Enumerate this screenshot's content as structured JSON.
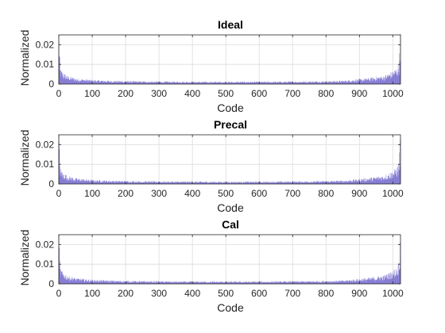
{
  "chart_data": [
    {
      "type": "bar",
      "title": "Ideal",
      "xlabel": "Code",
      "ylabel": "Normalized",
      "xlim": [
        0,
        1023
      ],
      "ylim": [
        0,
        0.025
      ],
      "grid": true,
      "x_ticks": [
        0,
        100,
        200,
        300,
        400,
        500,
        600,
        700,
        800,
        900,
        1000
      ],
      "y_ticks": [
        0,
        0.01,
        0.02
      ],
      "y_tick_labels": [
        "0",
        "0.01",
        "0.02"
      ],
      "x": [
        0,
        4,
        10,
        25,
        50,
        100,
        150,
        200,
        250,
        300,
        350,
        400,
        450,
        500,
        550,
        600,
        650,
        700,
        750,
        800,
        850,
        873,
        923,
        973,
        998,
        1013,
        1019,
        1023
      ],
      "y": [
        0.0195,
        0.006,
        0.0045,
        0.003,
        0.0021,
        0.0015,
        0.00125,
        0.0011,
        0.001,
        0.00095,
        0.0009,
        0.00088,
        0.00086,
        0.00085,
        0.00086,
        0.00088,
        0.0009,
        0.00095,
        0.001,
        0.0011,
        0.00125,
        0.0015,
        0.0021,
        0.003,
        0.0045,
        0.006,
        0.0085,
        0.0195
      ],
      "series_color": "#5b4fc4"
    },
    {
      "type": "bar",
      "title": "Precal",
      "xlabel": "Code",
      "ylabel": "Normalized",
      "xlim": [
        0,
        1023
      ],
      "ylim": [
        0,
        0.025
      ],
      "grid": true,
      "x_ticks": [
        0,
        100,
        200,
        300,
        400,
        500,
        600,
        700,
        800,
        900,
        1000
      ],
      "y_ticks": [
        0,
        0.01,
        0.02
      ],
      "y_tick_labels": [
        "0",
        "0.01",
        "0.02"
      ],
      "x": [
        0,
        4,
        10,
        25,
        50,
        100,
        150,
        200,
        250,
        300,
        350,
        400,
        450,
        500,
        550,
        600,
        650,
        700,
        750,
        800,
        850,
        873,
        923,
        973,
        998,
        1013,
        1019,
        1023
      ],
      "y": [
        0.0198,
        0.006,
        0.0045,
        0.003,
        0.0021,
        0.0015,
        0.00125,
        0.0011,
        0.001,
        0.00095,
        0.0009,
        0.00088,
        0.00086,
        0.00085,
        0.00086,
        0.00088,
        0.0009,
        0.00095,
        0.001,
        0.0011,
        0.00125,
        0.0015,
        0.0021,
        0.003,
        0.0045,
        0.006,
        0.0085,
        0.0198
      ],
      "series_color": "#5b4fc4"
    },
    {
      "type": "bar",
      "title": "Cal",
      "xlabel": "Code",
      "ylabel": "Normalized",
      "xlim": [
        0,
        1023
      ],
      "ylim": [
        0,
        0.025
      ],
      "grid": true,
      "x_ticks": [
        0,
        100,
        200,
        300,
        400,
        500,
        600,
        700,
        800,
        900,
        1000
      ],
      "y_ticks": [
        0,
        0.01,
        0.02
      ],
      "y_tick_labels": [
        "0",
        "0.01",
        "0.02"
      ],
      "x": [
        0,
        4,
        10,
        25,
        50,
        100,
        150,
        200,
        250,
        300,
        350,
        400,
        450,
        500,
        550,
        600,
        650,
        700,
        750,
        800,
        850,
        873,
        923,
        973,
        998,
        1013,
        1019,
        1023
      ],
      "y": [
        0.0198,
        0.006,
        0.0045,
        0.003,
        0.0021,
        0.0015,
        0.00125,
        0.0011,
        0.001,
        0.00095,
        0.0009,
        0.00088,
        0.00086,
        0.00085,
        0.00086,
        0.00088,
        0.0009,
        0.00095,
        0.001,
        0.0011,
        0.00125,
        0.0015,
        0.0021,
        0.003,
        0.0045,
        0.006,
        0.0085,
        0.0198
      ],
      "series_color": "#5b4fc4"
    }
  ]
}
